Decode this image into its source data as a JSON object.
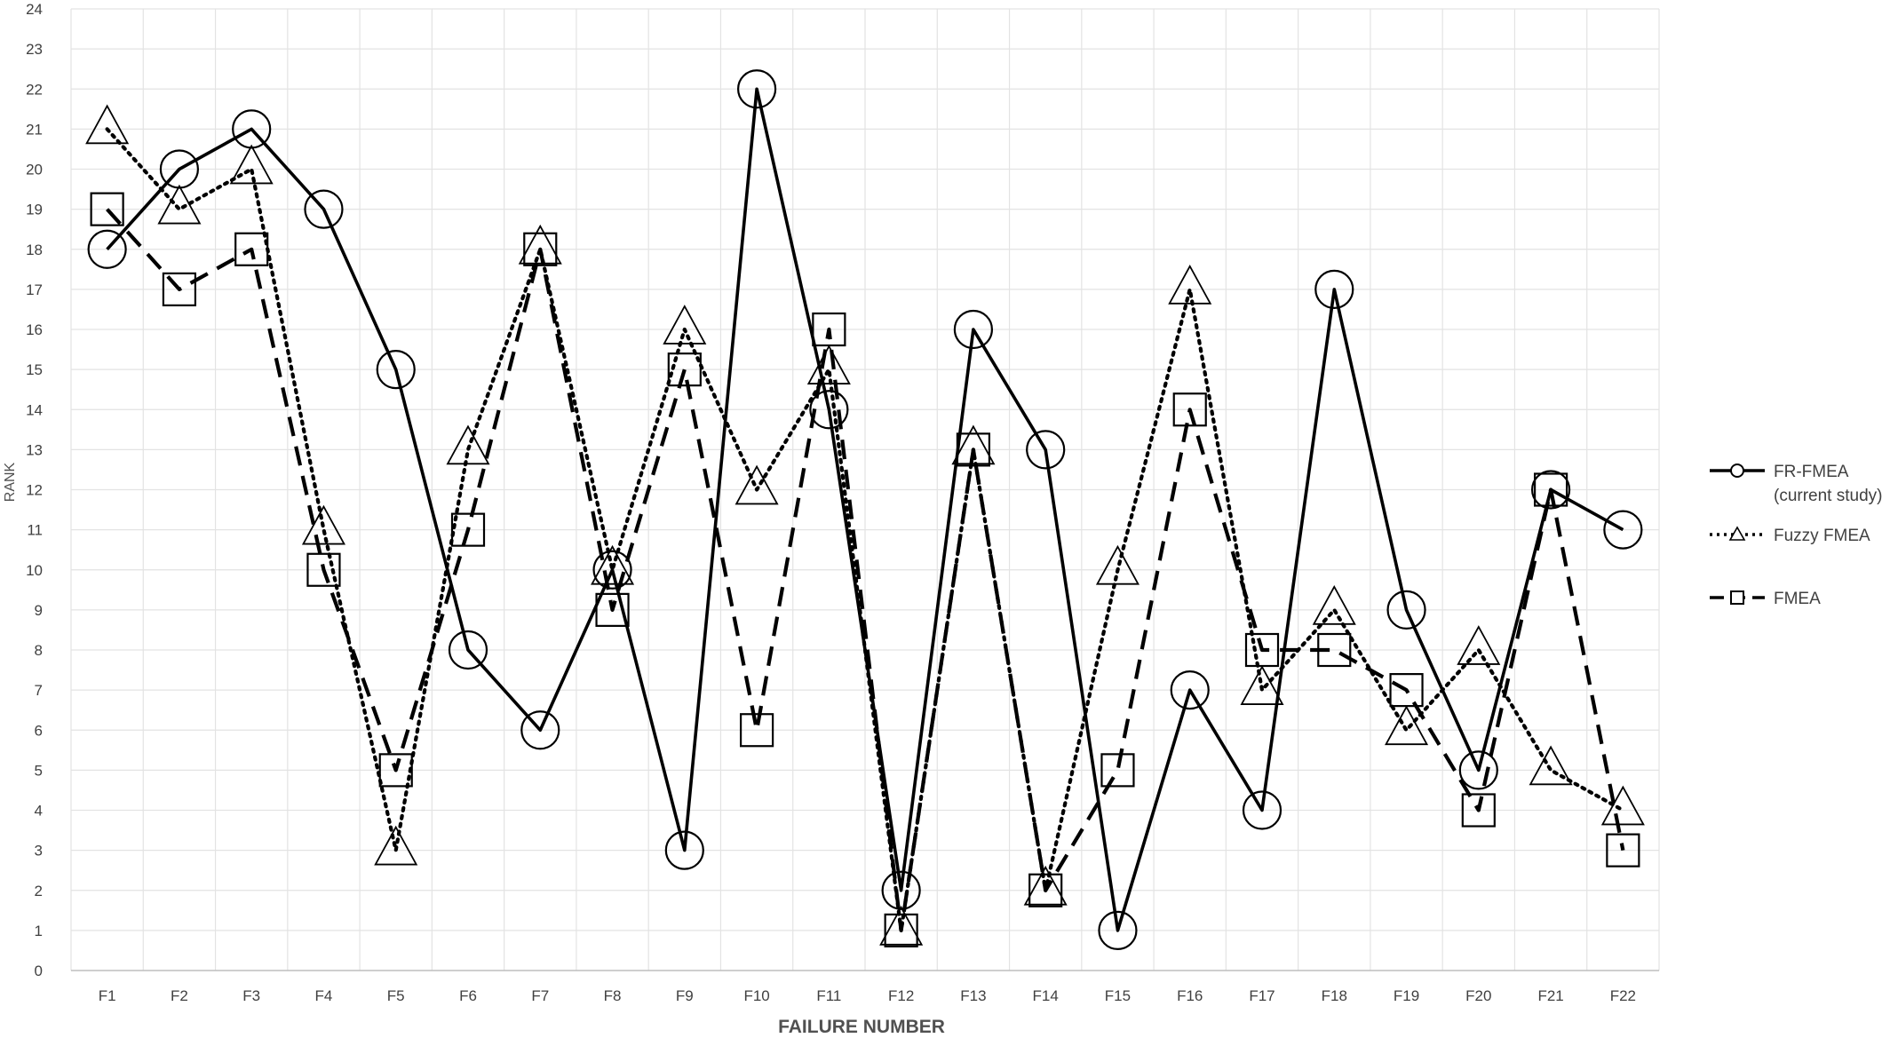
{
  "chart_data": {
    "type": "line",
    "title": "",
    "xlabel": "FAILURE NUMBER",
    "ylabel": "RANK",
    "ylim": [
      0,
      24
    ],
    "y_ticks": [
      0,
      1,
      2,
      3,
      4,
      5,
      6,
      7,
      8,
      9,
      10,
      11,
      12,
      13,
      14,
      15,
      16,
      17,
      18,
      19,
      20,
      21,
      22,
      23,
      24
    ],
    "grid": true,
    "legend_position": "right",
    "categories": [
      "F1",
      "F2",
      "F3",
      "F4",
      "F5",
      "F6",
      "F7",
      "F8",
      "F9",
      "F10",
      "F11",
      "F12",
      "F13",
      "F14",
      "F15",
      "F16",
      "F17",
      "F18",
      "F19",
      "F20",
      "F21",
      "F22"
    ],
    "series": [
      {
        "name": "FR-FMEA (current study)",
        "legend_lines": [
          "FR-FMEA",
          "(current study)"
        ],
        "line_style": "solid",
        "marker": "circle",
        "color": "#000000",
        "values": [
          18,
          20,
          21,
          19,
          15,
          8,
          6,
          10,
          3,
          22,
          14,
          2,
          16,
          13,
          1,
          7,
          4,
          17,
          9,
          5,
          12,
          11
        ]
      },
      {
        "name": "Fuzzy FMEA",
        "legend_lines": [
          "Fuzzy FMEA"
        ],
        "line_style": "dotted",
        "marker": "triangle",
        "color": "#000000",
        "values": [
          21,
          19,
          20,
          11,
          3,
          13,
          18,
          10,
          16,
          12,
          15,
          1,
          13,
          2,
          10,
          17,
          7,
          9,
          6,
          8,
          5,
          4
        ]
      },
      {
        "name": "FMEA",
        "legend_lines": [
          "FMEA"
        ],
        "line_style": "dashed",
        "marker": "square",
        "color": "#000000",
        "values": [
          19,
          17,
          18,
          10,
          5,
          11,
          18,
          9,
          15,
          6,
          16,
          1,
          13,
          2,
          5,
          14,
          8,
          8,
          7,
          4,
          12,
          3
        ]
      }
    ]
  }
}
